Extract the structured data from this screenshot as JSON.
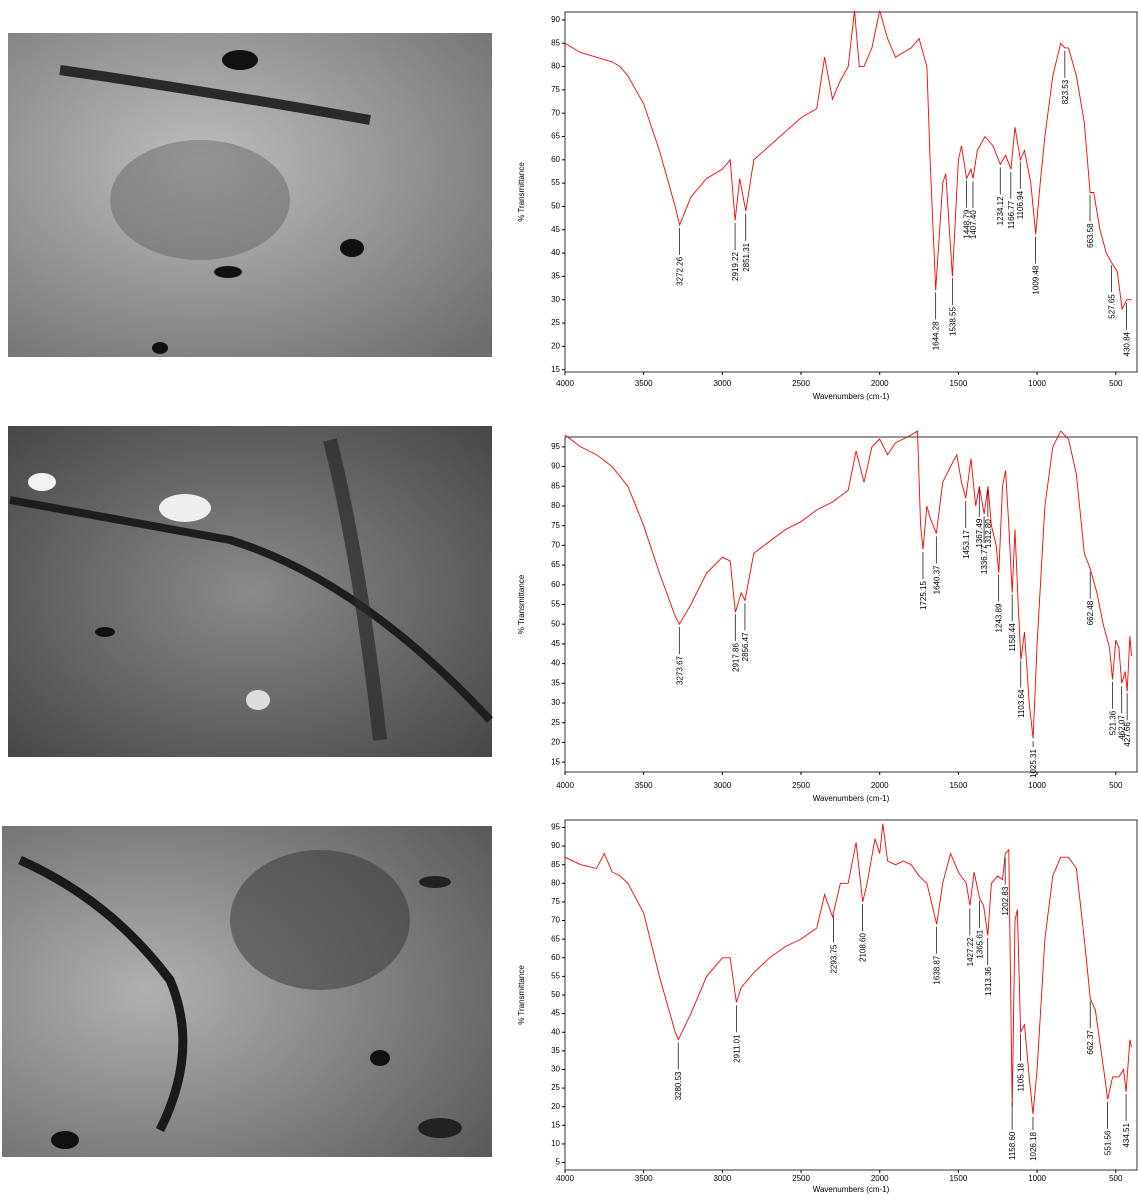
{
  "chart_data": [
    {
      "type": "line",
      "x_label": "Wavenumbers (cm-1)",
      "y_label": "% Transmittance",
      "color": "#ff0000",
      "xlim": [
        4000,
        365
      ],
      "ylim": [
        14.5,
        91.7
      ],
      "xticks": [
        4000,
        3500,
        3000,
        2500,
        2000,
        1500,
        1000,
        500
      ],
      "yticks": [
        15,
        20,
        25,
        30,
        35,
        40,
        45,
        50,
        55,
        60,
        65,
        70,
        75,
        80,
        85,
        90
      ],
      "x": [
        4000,
        3900,
        3800,
        3700,
        3650,
        3600,
        3500,
        3400,
        3300,
        3272,
        3200,
        3100,
        3000,
        2950,
        2919,
        2890,
        2851,
        2800,
        2700,
        2600,
        2500,
        2400,
        2350,
        2300,
        2250,
        2200,
        2160,
        2130,
        2100,
        2050,
        2000,
        1950,
        1900,
        1850,
        1800,
        1750,
        1700,
        1680,
        1644,
        1600,
        1580,
        1538,
        1500,
        1480,
        1448,
        1420,
        1407,
        1380,
        1330,
        1280,
        1234,
        1200,
        1166,
        1140,
        1106,
        1080,
        1040,
        1009,
        980,
        950,
        900,
        850,
        823,
        800,
        750,
        700,
        663,
        640,
        600,
        560,
        527,
        490,
        460,
        430,
        400
      ],
      "values": [
        85,
        83,
        82,
        81,
        80,
        78,
        72,
        62,
        50,
        46,
        52,
        56,
        58,
        60,
        47,
        56,
        49,
        60,
        63,
        66,
        69,
        71,
        82,
        73,
        77,
        80,
        92,
        80,
        80,
        84,
        92,
        86,
        82,
        83,
        84,
        86,
        80,
        60,
        32,
        55,
        57,
        35,
        60,
        63,
        56,
        58,
        56,
        62,
        65,
        63,
        59,
        61,
        58,
        67,
        60,
        62,
        55,
        44,
        55,
        65,
        78,
        85,
        84,
        84,
        78,
        68,
        53,
        53,
        45,
        40,
        38,
        36,
        28,
        30,
        30
      ],
      "peaks": [
        3272.26,
        2919.22,
        2851.31,
        1644.28,
        1538.55,
        1448.79,
        {
          "value": 1407.4,
          "label": "1407.40"
        },
        1234.12,
        1166.77,
        1106.94,
        1009.48,
        823.53,
        663.58,
        527.65,
        430.84
      ]
    },
    {
      "type": "line",
      "x_label": "Wavenumbers (cm-1)",
      "y_label": "% Transmittance",
      "color": "#ff0000",
      "xlim": [
        4000,
        365
      ],
      "ylim": [
        12.5,
        97.5
      ],
      "xticks": [
        4000,
        3500,
        3000,
        2500,
        2000,
        1500,
        1000,
        500
      ],
      "yticks": [
        15,
        20,
        25,
        30,
        35,
        40,
        45,
        50,
        55,
        60,
        65,
        70,
        75,
        80,
        85,
        90,
        95
      ],
      "x": [
        4000,
        3900,
        3800,
        3700,
        3600,
        3500,
        3400,
        3300,
        3273,
        3200,
        3100,
        3000,
        2950,
        2917,
        2880,
        2856,
        2800,
        2700,
        2600,
        2500,
        2400,
        2300,
        2200,
        2150,
        2100,
        2050,
        2000,
        1950,
        1900,
        1800,
        1760,
        1740,
        1725,
        1700,
        1680,
        1640,
        1600,
        1550,
        1510,
        1480,
        1453,
        1420,
        1390,
        1367,
        1336,
        1312,
        1290,
        1260,
        1243,
        1220,
        1200,
        1180,
        1158,
        1140,
        1120,
        1103,
        1080,
        1050,
        1025,
        1000,
        950,
        900,
        850,
        800,
        750,
        700,
        662,
        620,
        580,
        540,
        521,
        500,
        480,
        462,
        440,
        427,
        410,
        400
      ],
      "values": [
        98,
        95,
        93,
        90,
        85,
        75,
        63,
        52,
        50,
        55,
        63,
        67,
        66,
        53,
        58,
        56,
        68,
        71,
        74,
        76,
        79,
        81,
        84,
        94,
        86,
        95,
        97,
        93,
        96,
        98,
        99,
        75,
        69,
        80,
        77,
        73,
        86,
        90,
        93,
        86,
        82,
        92,
        80,
        85,
        78,
        85,
        75,
        70,
        63,
        85,
        89,
        75,
        58,
        74,
        55,
        41,
        48,
        30,
        21,
        45,
        80,
        95,
        99,
        97,
        88,
        68,
        64,
        58,
        50,
        44,
        36,
        46,
        44,
        35,
        38,
        33,
        47,
        42
      ],
      "peaks": [
        3273.67,
        2917.86,
        2856.47,
        1725.15,
        1640.37,
        1453.17,
        1367.49,
        1336.77,
        {
          "value": 1312.8,
          "label": "1312.80"
        },
        1243.89,
        1158.44,
        1103.64,
        1025.31,
        662.48,
        521.36,
        462.07,
        427.66
      ]
    },
    {
      "type": "line",
      "x_label": "Wavenumbers (cm-1)",
      "y_label": "% Transmittance",
      "color": "#ff0000",
      "xlim": [
        4000,
        365
      ],
      "ylim": [
        3,
        97
      ],
      "xticks": [
        4000,
        3500,
        3000,
        2500,
        2000,
        1500,
        1000,
        500
      ],
      "yticks": [
        5,
        10,
        15,
        20,
        25,
        30,
        35,
        40,
        45,
        50,
        55,
        60,
        65,
        70,
        75,
        80,
        85,
        90,
        95
      ],
      "x": [
        4000,
        3900,
        3800,
        3750,
        3700,
        3650,
        3600,
        3500,
        3400,
        3300,
        3280,
        3200,
        3100,
        3000,
        2950,
        2911,
        2880,
        2800,
        2700,
        2600,
        2500,
        2400,
        2350,
        2300,
        2250,
        2200,
        2150,
        2108,
        2080,
        2030,
        2000,
        1980,
        1950,
        1900,
        1850,
        1800,
        1750,
        1700,
        1638,
        1600,
        1550,
        1500,
        1450,
        1427,
        1400,
        1365,
        1340,
        1313,
        1290,
        1250,
        1220,
        1202,
        1180,
        1158,
        1140,
        1125,
        1105,
        1080,
        1050,
        1026,
        1000,
        950,
        900,
        850,
        800,
        750,
        700,
        662,
        630,
        580,
        551,
        520,
        480,
        450,
        434,
        410,
        400
      ],
      "values": [
        87,
        85,
        84,
        88,
        83,
        82,
        80,
        72,
        55,
        40,
        38,
        45,
        55,
        60,
        60,
        48,
        52,
        56,
        60,
        63,
        65,
        68,
        77,
        71,
        80,
        80,
        91,
        75,
        80,
        92,
        88,
        96,
        86,
        85,
        86,
        85,
        82,
        80,
        69,
        80,
        88,
        83,
        80,
        74,
        83,
        76,
        74,
        66,
        80,
        82,
        81,
        88,
        89,
        20,
        70,
        73,
        40,
        42,
        28,
        18,
        30,
        65,
        82,
        87,
        87,
        84,
        65,
        49,
        46,
        31,
        22,
        28,
        28,
        30,
        24,
        38,
        36
      ],
      "peaks": [
        3280.53,
        2911.01,
        2293.75,
        {
          "value": 2108.6,
          "label": "2108.60"
        },
        1638.87,
        1427.22,
        1365.61,
        1313.36,
        1202.83,
        {
          "value": 1158.6,
          "label": "1158.60"
        },
        1105.18,
        1026.18,
        662.37,
        551.56,
        434.51
      ]
    }
  ]
}
